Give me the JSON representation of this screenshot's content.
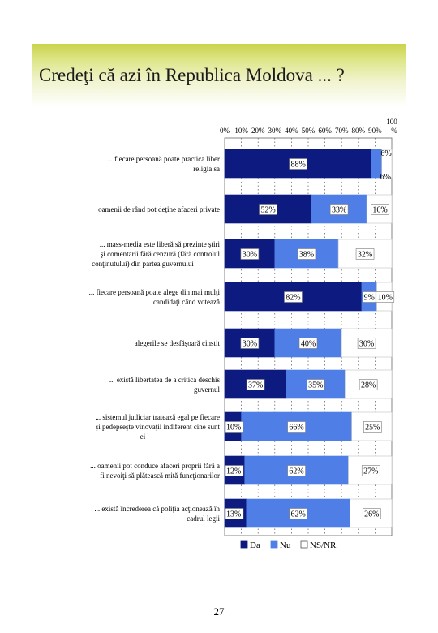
{
  "title": "Credeţi că azi în Republica Moldova ... ?",
  "page_number": "27",
  "colors": {
    "da": "#0d1a80",
    "nu": "#4f7fe6",
    "ns_nr": "#ffffff",
    "title_band": "#d6de6e"
  },
  "chart_data": {
    "type": "bar",
    "orientation": "horizontal",
    "stacked": true,
    "x_ticks": [
      "0%",
      "10%",
      "20%",
      "30%",
      "40%",
      "50%",
      "60%",
      "70%",
      "80%",
      "90%",
      "100 %"
    ],
    "xlim": [
      0,
      100
    ],
    "grid": true,
    "legend_position": "bottom",
    "categories": [
      "... fiecare persoană poate practica liber religia sa",
      "oamenii de rând pot deţine afaceri private",
      "... mass-media este liberă să prezinte ştiri şi comentarii fără cenzură (fără controlul conţinutului) din partea guvernului",
      "... fiecare persoană poate alege din mai mulţi candidaţi când votează",
      "alegerile se desfăşoară cinstit",
      "... există libertatea de a critica deschis guvernul",
      "... sistemul judiciar tratează egal pe fiecare şi pedepseşte vinovaţii indiferent cine sunt ei",
      "... oamenii pot conduce afaceri proprii fără a fi nevoiţi să plătească mită funcţionarilor",
      "... există încrederea că poliţia acţionează în cadrul legii"
    ],
    "series": [
      {
        "name": "Da",
        "values": [
          88,
          52,
          30,
          82,
          30,
          37,
          10,
          12,
          13
        ],
        "labels": [
          "88%",
          "52%",
          "30%",
          "82%",
          "30%",
          "37%",
          "10%",
          "12%",
          "13%"
        ]
      },
      {
        "name": "Nu",
        "values": [
          6,
          33,
          38,
          9,
          40,
          35,
          66,
          62,
          62
        ],
        "labels": [
          "6%",
          "33%",
          "38%",
          "9%",
          "40%",
          "35%",
          "66%",
          "62%",
          "62%"
        ]
      },
      {
        "name": "NS/NR",
        "values": [
          6,
          16,
          32,
          10,
          30,
          28,
          25,
          27,
          26
        ],
        "labels": [
          "6%",
          "16%",
          "32%",
          "10%",
          "30%",
          "28%",
          "25%",
          "27%",
          "26%"
        ]
      }
    ]
  }
}
